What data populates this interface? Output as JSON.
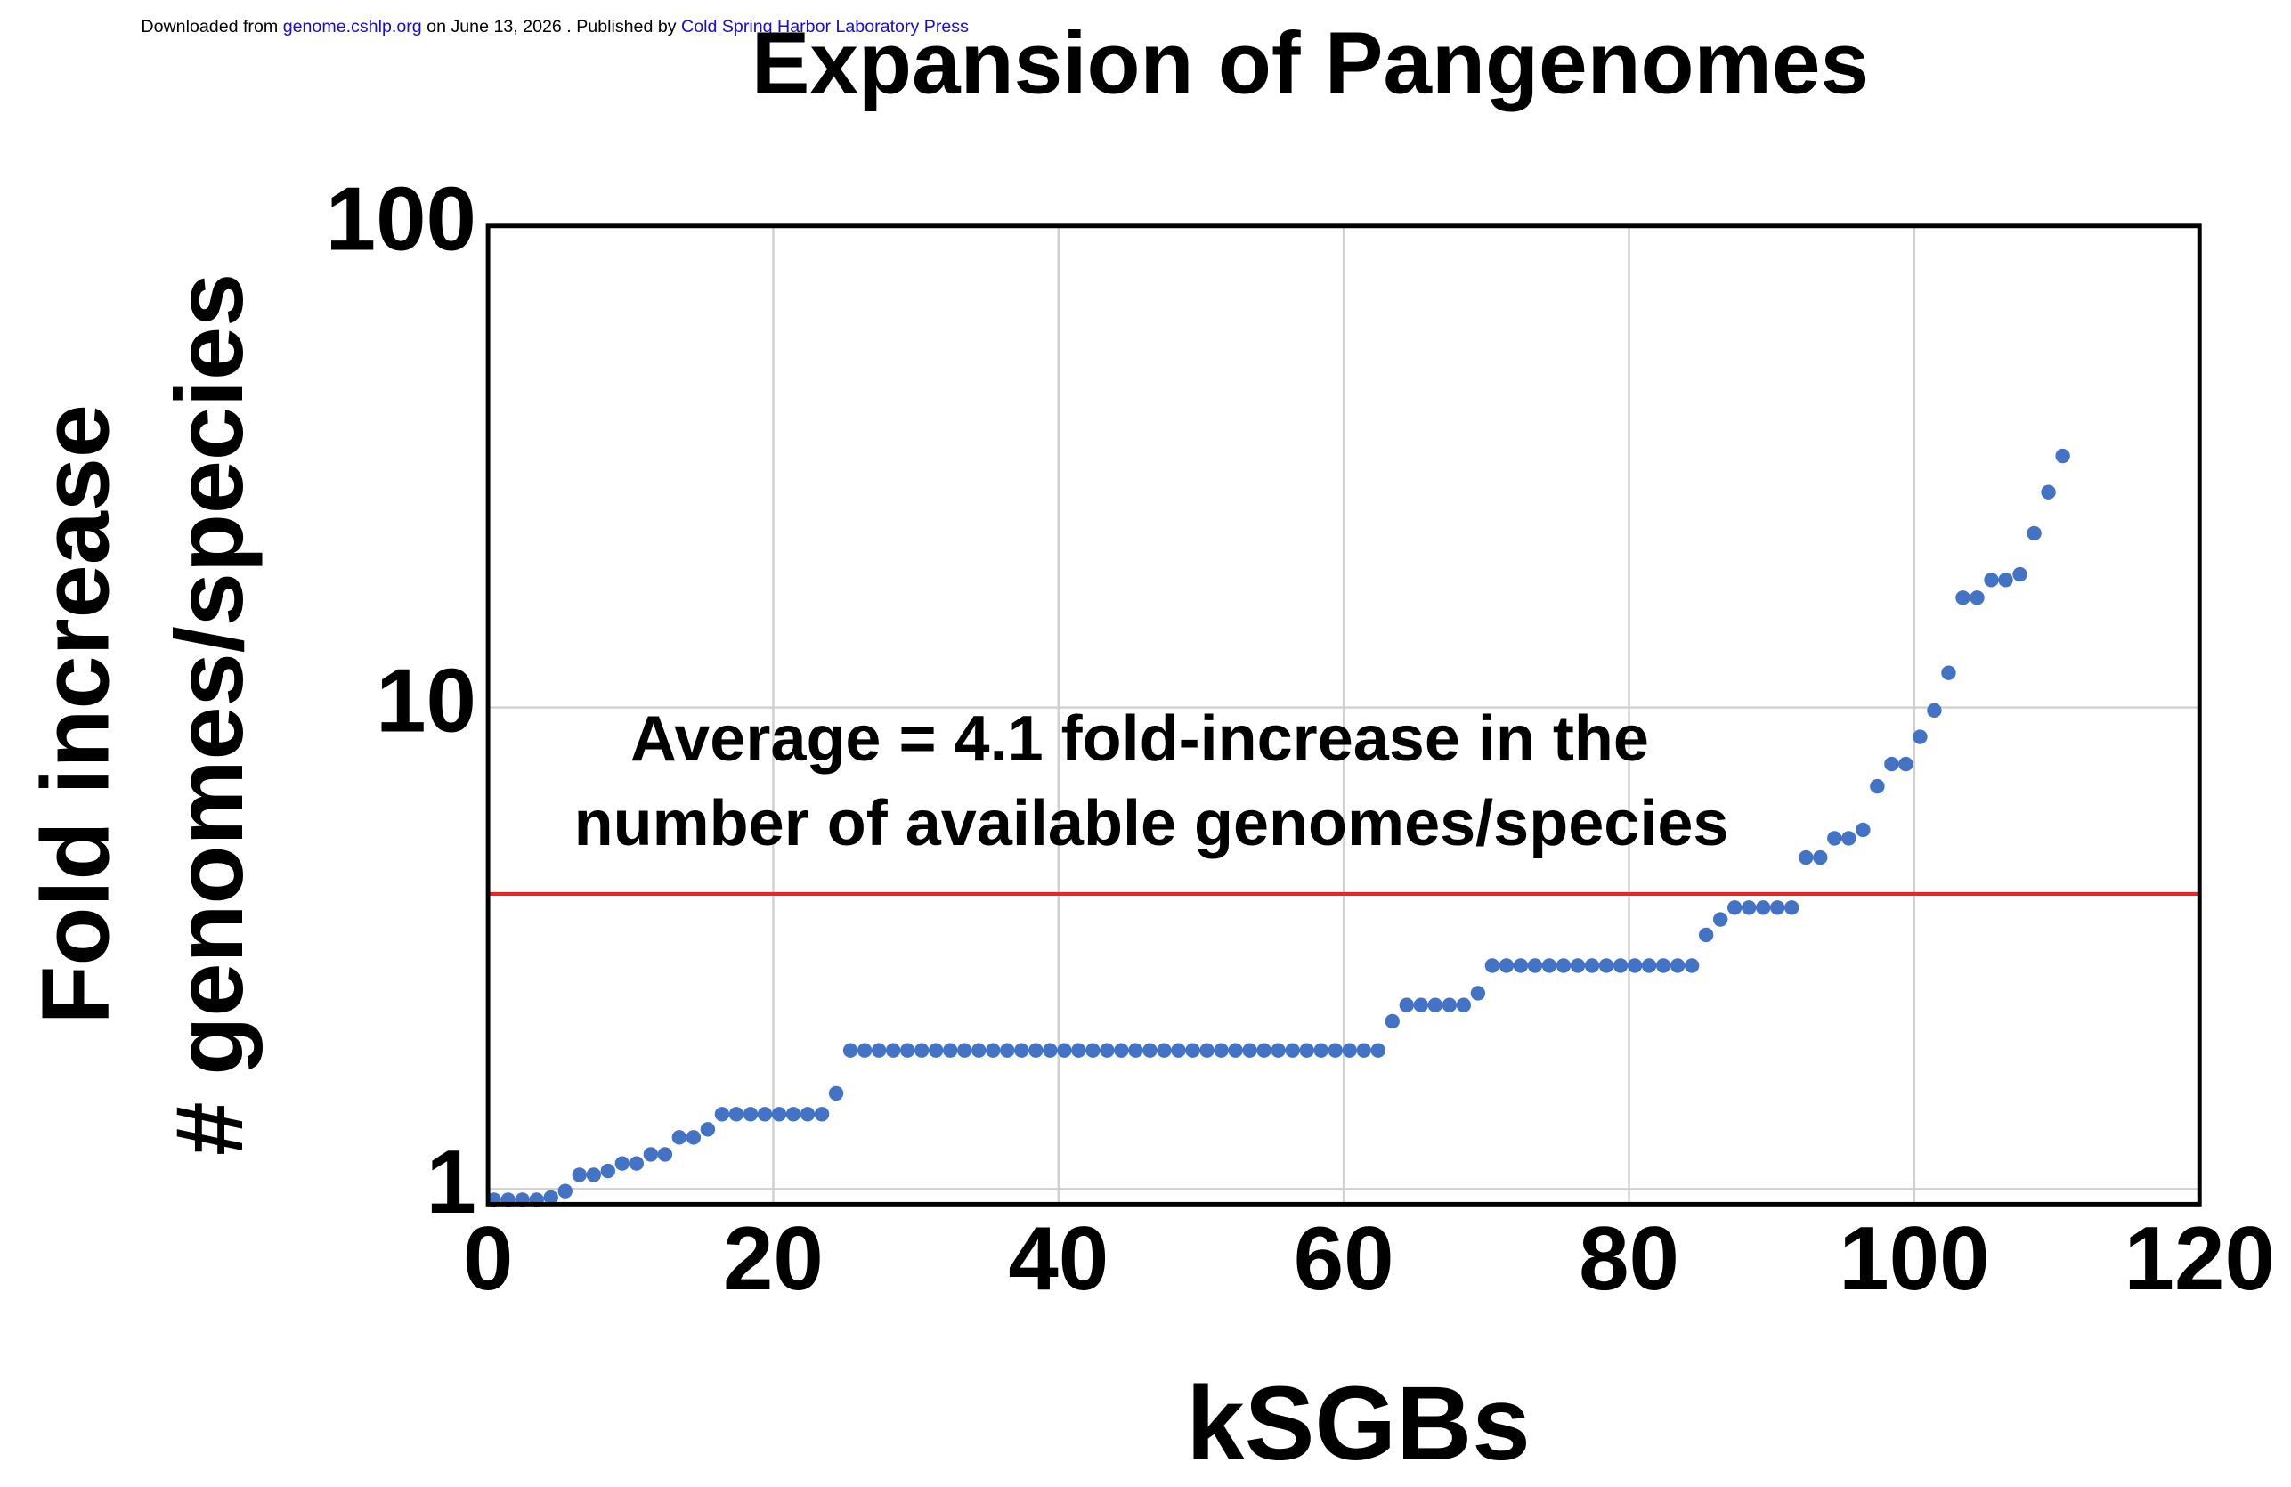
{
  "header": {
    "pre": "Downloaded from ",
    "link1": "genome.cshlp.org",
    "mid": " on June 13, 2026 . Published by ",
    "link2": "Cold Spring Harbor Laboratory Press"
  },
  "chart_data": {
    "type": "scatter",
    "title": "Expansion of Pangenomes",
    "xlabel": "kSGBs",
    "ylabel": [
      "Fold increase",
      "# genomes/species"
    ],
    "annotation": [
      "Average = 4.1 fold-increase in the",
      "number of available genomes/species"
    ],
    "average_line": {
      "value": 4.1,
      "color": "#e8252b"
    },
    "color": "#4472c4",
    "x": [
      0,
      1,
      2,
      3,
      4,
      5,
      6,
      7,
      8,
      9,
      10,
      11,
      12,
      13,
      14,
      15,
      16,
      17,
      18,
      19,
      20,
      21,
      22,
      23,
      24,
      25,
      26,
      27,
      28,
      29,
      30,
      31,
      32,
      33,
      34,
      35,
      36,
      37,
      38,
      39,
      40,
      41,
      42,
      43,
      44,
      45,
      46,
      47,
      48,
      49,
      50,
      51,
      52,
      53,
      54,
      55,
      56,
      57,
      58,
      59,
      60,
      61,
      62,
      63,
      64,
      65,
      66,
      67,
      68,
      69,
      70,
      71,
      72,
      73,
      74,
      75,
      76,
      77,
      78,
      79,
      80,
      81,
      82,
      83,
      84,
      85,
      86,
      87,
      88,
      89,
      90,
      91,
      92,
      93,
      94,
      95,
      96,
      97,
      98,
      99,
      100,
      101,
      102,
      103,
      104,
      105,
      106,
      107,
      108,
      109,
      110
    ],
    "values": [
      0.95,
      0.95,
      0.95,
      0.95,
      0.96,
      0.99,
      1.07,
      1.07,
      1.09,
      1.13,
      1.13,
      1.18,
      1.18,
      1.28,
      1.28,
      1.33,
      1.43,
      1.43,
      1.43,
      1.43,
      1.43,
      1.43,
      1.43,
      1.43,
      1.58,
      1.94,
      1.94,
      1.94,
      1.94,
      1.94,
      1.94,
      1.94,
      1.94,
      1.94,
      1.94,
      1.94,
      1.94,
      1.94,
      1.94,
      1.94,
      1.94,
      1.94,
      1.94,
      1.94,
      1.94,
      1.94,
      1.94,
      1.94,
      1.94,
      1.94,
      1.94,
      1.94,
      1.94,
      1.94,
      1.94,
      1.94,
      1.94,
      1.94,
      1.94,
      1.94,
      1.94,
      1.94,
      1.94,
      2.23,
      2.41,
      2.41,
      2.41,
      2.41,
      2.41,
      2.55,
      2.91,
      2.91,
      2.91,
      2.91,
      2.91,
      2.91,
      2.91,
      2.91,
      2.91,
      2.91,
      2.91,
      2.91,
      2.91,
      2.91,
      2.91,
      3.37,
      3.63,
      3.84,
      3.84,
      3.84,
      3.84,
      3.84,
      4.88,
      4.88,
      5.35,
      5.35,
      5.57,
      6.86,
      7.63,
      7.63,
      8.69,
      9.86,
      11.8,
      16.9,
      16.9,
      18.4,
      18.4,
      18.9,
      23.0,
      28.0,
      33.3
    ],
    "xlim": [
      0,
      120
    ],
    "xticks": [
      0,
      20,
      40,
      60,
      80,
      100,
      120
    ],
    "ylim": [
      0.93,
      100
    ],
    "yticks": [
      1,
      10,
      100
    ],
    "ylog": true,
    "grid": true
  }
}
